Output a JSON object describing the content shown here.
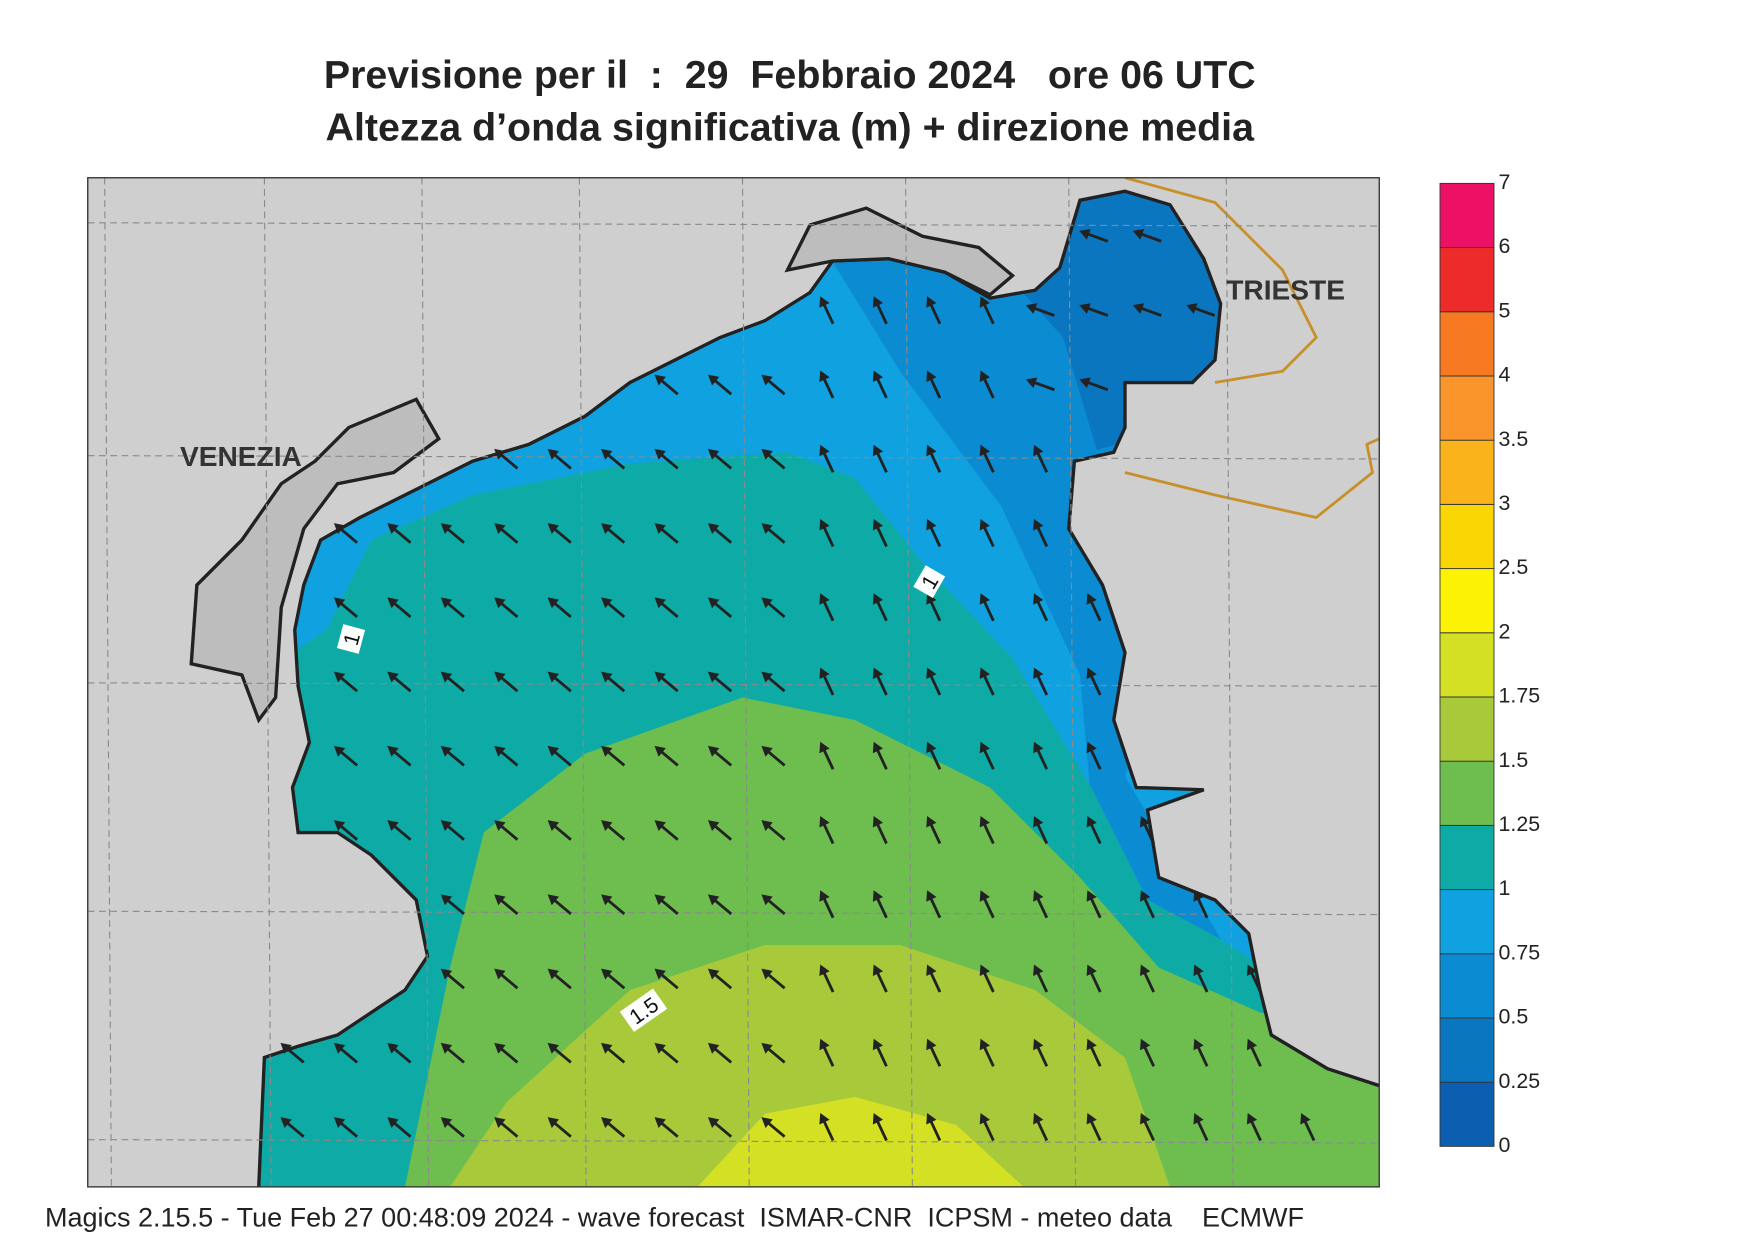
{
  "title": [
    "Previsione per il  :  29  Febbraio 2024   ore 06 UTC",
    "Altezza d’onda significativa (m) + direzione media"
  ],
  "map": {
    "places": [
      "VENEZIA",
      "TRIESTE"
    ],
    "contour_labels": [
      "1",
      "1",
      "1.5"
    ]
  },
  "colorbar": {
    "ticks": [
      0,
      0.25,
      0.5,
      0.75,
      1,
      1.25,
      1.5,
      1.75,
      2,
      2.5,
      3,
      3.5,
      4,
      5,
      6,
      7
    ],
    "colors": [
      "#0c5fb0",
      "#0b76c0",
      "#0b8bd2",
      "#10a1e0",
      "#0eaba6",
      "#6dbd4f",
      "#a7c93a",
      "#d4e023",
      "#fbf205",
      "#fbd605",
      "#fab31b",
      "#f9952b",
      "#f77a22",
      "#ee2b2b",
      "#ec1165"
    ]
  },
  "footer": "Magics 2.15.5 - Tue Feb 27 00:48:09 2024 - wave forecast  ISMAR-CNR  ICPSM - meteo data    ECMWF"
}
